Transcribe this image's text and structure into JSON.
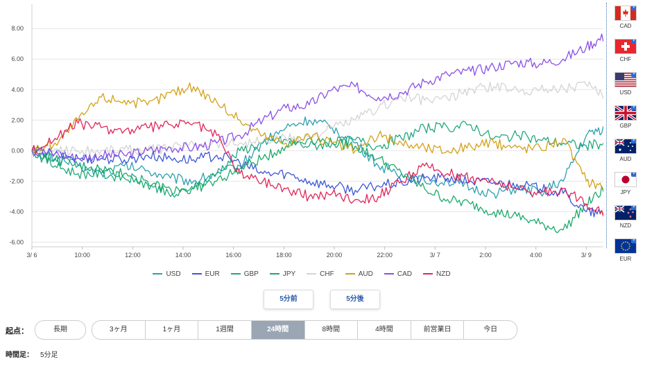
{
  "chart_data": {
    "type": "line",
    "x_ticks": [
      "3/ 6",
      "10:00",
      "12:00",
      "14:00",
      "16:00",
      "18:00",
      "20:00",
      "22:00",
      "3/ 7",
      "2:00",
      "4:00",
      "3/ 9"
    ],
    "y_ticks": [
      "8.00",
      "6.00",
      "4.00",
      "2.00",
      "0.00",
      "-2.00",
      "-4.00",
      "-6.00"
    ],
    "ylim": [
      -6.3,
      9.6
    ],
    "xlim": [
      0,
      24.8
    ],
    "grid": "horizontal",
    "legend_position": "bottom",
    "series": [
      {
        "name": "USD",
        "color": "#2a9fb0",
        "x": [
          0,
          1,
          2,
          3,
          4,
          5,
          6,
          7,
          8,
          9,
          10,
          11,
          12,
          13,
          14,
          15,
          16,
          17,
          18,
          19,
          20,
          21,
          22,
          23,
          24,
          24.8
        ],
        "values": [
          0,
          -0.5,
          -1.0,
          -1.5,
          -1.0,
          -1.3,
          -1.8,
          -2.0,
          -1.5,
          -1.0,
          0.5,
          1.5,
          2.0,
          1.5,
          0.5,
          -1.0,
          -1.5,
          -2.0,
          -2.0,
          -2.5,
          -2.8,
          -2.5,
          -2.7,
          -2.0,
          1.0,
          1.5
        ]
      },
      {
        "name": "EUR",
        "color": "#3b55d6",
        "x": [
          0,
          1,
          2,
          3,
          4,
          5,
          6,
          7,
          8,
          9,
          10,
          11,
          12,
          13,
          14,
          15,
          16,
          17,
          18,
          19,
          20,
          21,
          22,
          23,
          24,
          24.8
        ],
        "values": [
          0,
          -0.2,
          -0.5,
          -0.5,
          -0.6,
          -0.3,
          -0.5,
          -0.6,
          -0.3,
          -0.8,
          -1.5,
          -1.5,
          -2.0,
          -2.3,
          -2.6,
          -2.3,
          -2.1,
          -1.8,
          -1.8,
          -2.0,
          -2.1,
          -2.2,
          -2.5,
          -2.8,
          -4.0,
          -4.2
        ]
      },
      {
        "name": "GBP",
        "color": "#22a87e",
        "x": [
          0,
          1,
          2,
          3,
          4,
          5,
          6,
          7,
          8,
          9,
          10,
          11,
          12,
          13,
          14,
          15,
          16,
          17,
          18,
          19,
          20,
          21,
          22,
          23,
          24,
          24.8
        ],
        "values": [
          0,
          -1.0,
          -1.5,
          -1.5,
          -1.8,
          -2.0,
          -3.0,
          -2.5,
          -1.5,
          0.0,
          0.5,
          0.7,
          0.3,
          0.5,
          0.7,
          0.3,
          0.8,
          1.5,
          1.5,
          1.7,
          0.8,
          1.0,
          0.7,
          0.5,
          0.3,
          0.5
        ]
      },
      {
        "name": "JPY",
        "color": "#1aaa6a",
        "x": [
          0,
          1,
          2,
          3,
          4,
          5,
          6,
          7,
          8,
          9,
          10,
          11,
          12,
          13,
          14,
          15,
          16,
          17,
          18,
          19,
          20,
          21,
          22,
          23,
          24,
          24.8
        ],
        "values": [
          0,
          -0.6,
          -1.0,
          -1.2,
          -1.5,
          -2.2,
          -2.5,
          -2.5,
          -2.0,
          -1.2,
          -0.5,
          0.3,
          0.8,
          0.5,
          0.3,
          -0.5,
          -1.5,
          -2.5,
          -3.2,
          -3.5,
          -4.0,
          -4.3,
          -4.8,
          -5.2,
          -3.5,
          -2.5
        ]
      },
      {
        "name": "CHF",
        "color": "#d4d4d4",
        "x": [
          0,
          1,
          2,
          3,
          4,
          5,
          6,
          7,
          8,
          9,
          10,
          11,
          12,
          13,
          14,
          15,
          16,
          17,
          18,
          19,
          20,
          21,
          22,
          23,
          24,
          24.8
        ],
        "values": [
          0,
          0.1,
          0.0,
          0.0,
          0.1,
          0.0,
          0.2,
          0.4,
          0.5,
          0.5,
          0.6,
          0.8,
          0.9,
          1.5,
          2.0,
          2.8,
          3.5,
          3.3,
          3.4,
          4.0,
          4.2,
          4.0,
          4.0,
          4.1,
          4.3,
          3.5
        ]
      },
      {
        "name": "AUD",
        "color": "#d4a017",
        "x": [
          0,
          1,
          2,
          3,
          4,
          5,
          6,
          7,
          8,
          9,
          10,
          11,
          12,
          13,
          14,
          15,
          16,
          17,
          18,
          19,
          20,
          21,
          22,
          23,
          24,
          24.8
        ],
        "values": [
          0,
          0.5,
          2.0,
          3.5,
          3.3,
          3.0,
          3.8,
          4.2,
          3.2,
          2.0,
          1.0,
          0.5,
          1.0,
          0.5,
          0.0,
          1.0,
          0.5,
          0.2,
          0.0,
          0.3,
          0.5,
          0.2,
          0.2,
          0.8,
          -2.0,
          -2.3
        ]
      },
      {
        "name": "CAD",
        "color": "#8a4fe6",
        "x": [
          0,
          1,
          2,
          3,
          4,
          5,
          6,
          7,
          8,
          9,
          10,
          11,
          12,
          13,
          14,
          15,
          16,
          17,
          18,
          19,
          20,
          21,
          22,
          23,
          24,
          24.8
        ],
        "values": [
          0,
          -0.2,
          -0.5,
          -0.3,
          -0.3,
          0.0,
          0.2,
          0.2,
          0.5,
          1.0,
          2.0,
          2.8,
          3.0,
          4.0,
          4.2,
          3.5,
          3.8,
          4.5,
          5.0,
          5.2,
          5.5,
          5.8,
          5.7,
          6.0,
          6.8,
          7.5
        ]
      },
      {
        "name": "NZD",
        "color": "#e0265a",
        "x": [
          0,
          1,
          2,
          3,
          4,
          5,
          6,
          7,
          8,
          9,
          10,
          11,
          12,
          13,
          14,
          15,
          16,
          17,
          18,
          19,
          20,
          21,
          22,
          23,
          24,
          24.8
        ],
        "values": [
          0,
          0.8,
          1.8,
          1.5,
          1.3,
          1.5,
          1.7,
          1.8,
          1.0,
          -1.5,
          -2.0,
          -2.5,
          -3.0,
          -2.8,
          -3.2,
          -3.0,
          -2.0,
          -1.0,
          -1.5,
          -1.8,
          -2.0,
          -2.5,
          -2.8,
          -2.5,
          -3.5,
          -4.0
        ]
      }
    ]
  },
  "legend": [
    {
      "name": "USD",
      "color": "#2a9fb0"
    },
    {
      "name": "EUR",
      "color": "#3b55d6"
    },
    {
      "name": "GBP",
      "color": "#22a87e"
    },
    {
      "name": "JPY",
      "color": "#1aaa6a"
    },
    {
      "name": "CHF",
      "color": "#d4d4d4"
    },
    {
      "name": "AUD",
      "color": "#d4a017"
    },
    {
      "name": "CAD",
      "color": "#8a4fe6"
    },
    {
      "name": "NZD",
      "color": "#e0265a"
    }
  ],
  "flags": [
    {
      "label": "CAD",
      "icon": "canada-flag-icon"
    },
    {
      "label": "CHF",
      "icon": "switzerland-flag-icon"
    },
    {
      "label": "USD",
      "icon": "usa-flag-icon"
    },
    {
      "label": "GBP",
      "icon": "uk-flag-icon"
    },
    {
      "label": "AUD",
      "icon": "australia-flag-icon"
    },
    {
      "label": "JPY",
      "icon": "japan-flag-icon"
    },
    {
      "label": "NZD",
      "icon": "new-zealand-flag-icon"
    },
    {
      "label": "EUR",
      "icon": "eu-flag-icon"
    }
  ],
  "controls": {
    "prev_label": "5分前",
    "next_label": "5分後",
    "origin_label": "起点：",
    "long_label": "長期",
    "ranges": [
      "3ヶ月",
      "1ヶ月",
      "1週間",
      "24時間",
      "8時間",
      "4時間",
      "前営業日",
      "今日"
    ],
    "active_range": "24時間",
    "period_label": "時間足：",
    "period_value": "5分足"
  }
}
